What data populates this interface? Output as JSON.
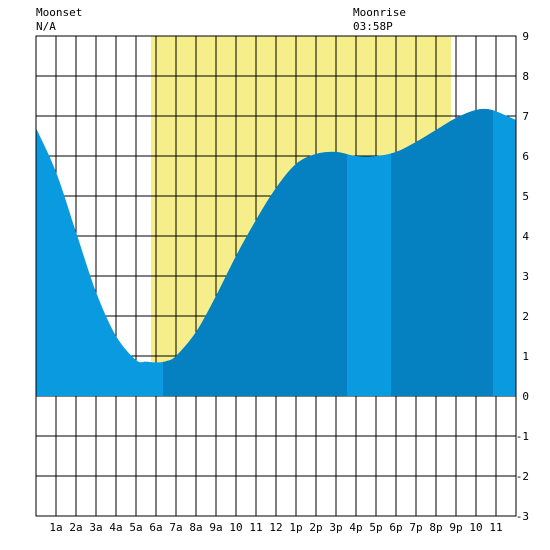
{
  "header": {
    "moonset_label": "Moonset",
    "moonset_value": "N/A",
    "moonrise_label": "Moonrise",
    "moonrise_value": "03:58P"
  },
  "chart_data": {
    "type": "area",
    "title": "",
    "xlabel": "",
    "ylabel": "",
    "xlim": [
      0,
      24
    ],
    "ylim": [
      -3,
      9
    ],
    "yticks": [
      9,
      8,
      7,
      6,
      5,
      4,
      3,
      2,
      1,
      0,
      -1,
      -2,
      -3
    ],
    "xtick_labels": [
      "1a",
      "2a",
      "3a",
      "4a",
      "5a",
      "6a",
      "7a",
      "8a",
      "9a",
      "10",
      "11",
      "12",
      "1p",
      "2p",
      "3p",
      "4p",
      "5p",
      "6p",
      "7p",
      "8p",
      "9p",
      "10",
      "11"
    ],
    "grid": true,
    "daylight": {
      "start_hour": 5.75,
      "end_hour": 20.75
    },
    "moon_shading": [
      {
        "start_hour": 6.35,
        "end_hour": 15.55,
        "tone": "dark"
      },
      {
        "start_hour": 17.75,
        "end_hour": 22.85,
        "tone": "dark"
      }
    ],
    "series": [
      {
        "x": [
          0,
          1,
          2,
          3,
          4,
          5,
          5.5,
          6,
          6.5,
          7,
          8,
          9,
          10,
          11,
          12,
          13,
          14,
          15,
          16,
          17,
          18,
          19,
          20,
          21,
          22,
          22.8,
          24
        ],
        "y": [
          6.7,
          5.6,
          4.1,
          2.6,
          1.5,
          0.9,
          0.86,
          0.84,
          0.87,
          1.0,
          1.6,
          2.5,
          3.5,
          4.4,
          5.2,
          5.8,
          6.05,
          6.1,
          6.0,
          6.0,
          6.1,
          6.35,
          6.65,
          6.95,
          7.15,
          7.15,
          6.9
        ]
      }
    ],
    "colors": {
      "background": "#ffffff",
      "daylight": "#f5ee8a",
      "tide_light": "#0a9ae0",
      "tide_dark": "#0581c2",
      "grid": "#000000"
    }
  }
}
